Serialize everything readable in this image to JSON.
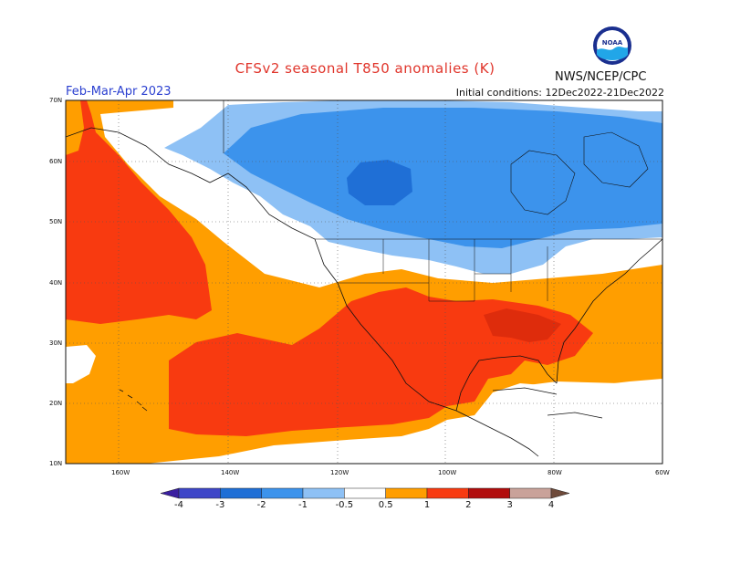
{
  "header": {
    "title": "CFSv2 seasonal T850 anomalies (K)",
    "period": "Feb-Mar-Apr 2023",
    "initial_conditions": "Initial conditions: 12Dec2022-21Dec2022",
    "agency": "NWS/NCEP/CPC",
    "logo_text": "NOAA"
  },
  "axes": {
    "latitudes": [
      "70N",
      "60N",
      "50N",
      "40N",
      "30N",
      "20N",
      "10N"
    ],
    "longitudes": [
      "160W",
      "140W",
      "120W",
      "100W",
      "80W",
      "60W"
    ]
  },
  "colorbar": {
    "labels": [
      "-4",
      "-3",
      "-2",
      "-1",
      "-0.5",
      "0.5",
      "1",
      "2",
      "3",
      "4"
    ],
    "colors": [
      "#3a1fa0",
      "#3e46c8",
      "#1f6fd6",
      "#3c93ec",
      "#8ec1f5",
      "#ffffff",
      "#ff9e00",
      "#f83a10",
      "#b10c0c",
      "#c9a29a",
      "#6e4a3a"
    ]
  },
  "legend_colors": {
    "warm_05_1": "#ff9e00",
    "warm_1_2": "#f83a10",
    "cool_05_1": "#8ec1f5",
    "cool_1_2": "#3c93ec",
    "cool_2_3": "#1f6fd6"
  }
}
